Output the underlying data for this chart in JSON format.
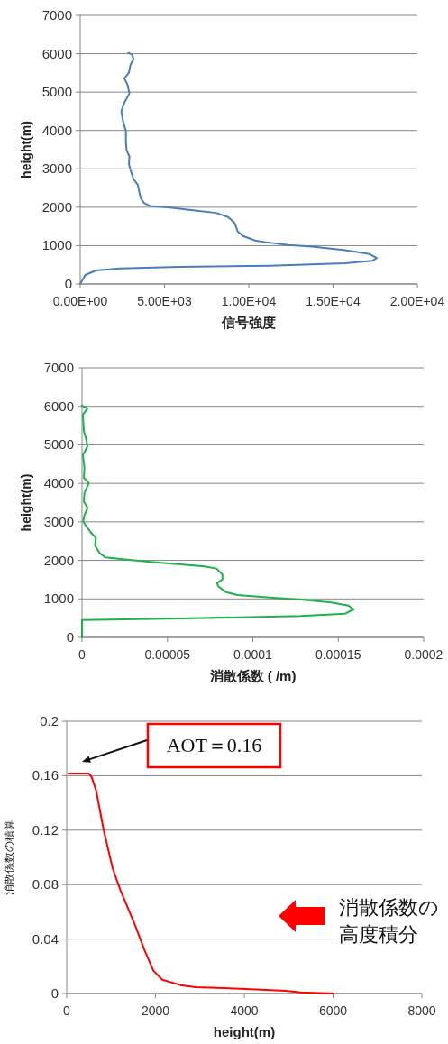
{
  "chart_data": [
    {
      "type": "line",
      "xlabel": "信号強度",
      "ylabel": "height(m)",
      "grid": "y",
      "xlim": [
        0,
        20000
      ],
      "ylim": [
        0,
        7000
      ],
      "xticks": [
        {
          "value": 0,
          "label": "0.00E+00"
        },
        {
          "value": 5000,
          "label": "5.00E+03"
        },
        {
          "value": 10000,
          "label": "1.00E+04"
        },
        {
          "value": 15000,
          "label": "1.50E+04"
        },
        {
          "value": 20000,
          "label": "2.00E+04"
        }
      ],
      "yticks": [
        0,
        1000,
        2000,
        3000,
        4000,
        5000,
        6000,
        7000
      ],
      "series": [
        {
          "color": "#4a7ebb",
          "x": [
            0,
            300,
            930,
            2350,
            5920,
            11270,
            15720,
            17330,
            17590,
            17150,
            15720,
            13760,
            12340,
            10910,
            10370,
            9660,
            9340,
            9250,
            9130,
            8770,
            8060,
            6810,
            5210,
            4140,
            3780,
            3600,
            3510,
            3420,
            3160,
            2980,
            2890,
            2920,
            2750,
            2710,
            2710,
            2530,
            2440,
            2620,
            2920,
            2800,
            2620,
            2890,
            2980,
            3160,
            3070,
            2850
          ],
          "values": [
            0,
            235,
            352,
            407,
            446,
            477,
            540,
            602,
            680,
            782,
            883,
            977,
            1016,
            1095,
            1134,
            1251,
            1368,
            1486,
            1603,
            1744,
            1853,
            1916,
            1994,
            2033,
            2111,
            2228,
            2385,
            2580,
            2737,
            2971,
            3127,
            3323,
            3479,
            3714,
            3988,
            4261,
            4496,
            4730,
            4965,
            5200,
            5356,
            5512,
            5708,
            5864,
            5981,
            6020
          ]
        }
      ]
    },
    {
      "type": "line",
      "xlabel": "消散係数 ( /m)",
      "ylabel": "height(m)",
      "grid": "y",
      "xlim": [
        0,
        0.0002
      ],
      "ylim": [
        0,
        7000
      ],
      "xticks": [
        0,
        {
          "value": 5e-05,
          "label": "0.00005"
        },
        0.0001,
        0.00015,
        0.0002
      ],
      "yticks": [
        0,
        1000,
        2000,
        3000,
        4000,
        5000,
        6000,
        7000
      ],
      "series": [
        {
          "color": "#1fb24a",
          "x": [
            0,
            0,
            5.76e-05,
            0.000128,
            0.000154,
            0.000159,
            0.000156,
            0.000146,
            0.000128,
            0.00011,
            9.1e-05,
            8.4e-05,
            7.96e-05,
            7.91e-05,
            8.22e-05,
            8.22e-05,
            7.87e-05,
            7.17e-05,
            5.76e-05,
            4e-05,
            2.25e-05,
            1.37e-05,
            1.02e-05,
            7.6e-06,
            8.1e-06,
            4.9e-06,
            2.3e-06,
            7e-07,
            1.4e-06,
            3.2e-06,
            1.1e-06,
            1.4e-06,
            4e-06,
            1.1e-06,
            1.4e-06,
            5e-07,
            3.2e-06,
            2.3e-06,
            1.1e-06,
            5e-07,
            3.2e-06,
            0
          ],
          "values": [
            0,
            453,
            492,
            554,
            617,
            726,
            827,
            906,
            984,
            1038,
            1101,
            1179,
            1335,
            1413,
            1507,
            1632,
            1788,
            1842,
            1897,
            1959,
            2037,
            2076,
            2194,
            2389,
            2584,
            2740,
            2896,
            3013,
            3169,
            3365,
            3521,
            3755,
            4005,
            4145,
            4418,
            4731,
            4965,
            5160,
            5355,
            5784,
            5941,
            6019
          ]
        }
      ]
    },
    {
      "type": "line",
      "xlabel": "height(m)",
      "ylabel": "消散係数の積算",
      "grid": "y",
      "xlim": [
        0,
        8000
      ],
      "ylim": [
        0,
        0.2
      ],
      "xticks": [
        0,
        2000,
        4000,
        6000,
        8000
      ],
      "yticks": [
        0,
        0.04,
        0.08,
        0.12,
        0.16,
        0.2
      ],
      "annotations": [
        "AOT＝0.16",
        "消散係数の高度積分"
      ],
      "series": [
        {
          "color": "#ff0000",
          "x": [
            40,
            495,
            562,
            664,
            833,
            1037,
            1206,
            1545,
            1748,
            1951,
            2154,
            2561,
            2900,
            3916,
            4932,
            5271,
            6016
          ],
          "values": [
            0.1616,
            0.1616,
            0.159,
            0.149,
            0.12,
            0.0917,
            0.0763,
            0.0498,
            0.0322,
            0.0168,
            0.0101,
            0.0062,
            0.0046,
            0.0035,
            0.002,
            0.0009,
            0
          ]
        }
      ]
    }
  ]
}
